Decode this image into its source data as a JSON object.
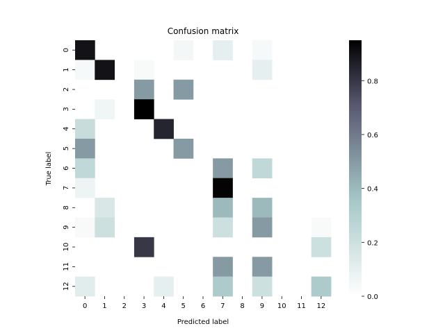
{
  "chart_data": {
    "type": "heatmap",
    "title": "Confusion matrix",
    "xlabel": "Predicted label",
    "ylabel": "True label",
    "x_categories": [
      "0",
      "1",
      "2",
      "3",
      "4",
      "5",
      "6",
      "7",
      "8",
      "9",
      "10",
      "11",
      "12"
    ],
    "y_categories": [
      "0",
      "1",
      "2",
      "3",
      "4",
      "5",
      "6",
      "7",
      "8",
      "9",
      "10",
      "11",
      "12"
    ],
    "values": [
      [
        0.9,
        0,
        0,
        0,
        0,
        0.05,
        0,
        0.1,
        0,
        0.04,
        0,
        0,
        0
      ],
      [
        0.04,
        0.9,
        0,
        0.03,
        0,
        0,
        0,
        0,
        0,
        0.1,
        0,
        0,
        0
      ],
      [
        0,
        0,
        0,
        0.5,
        0,
        0.5,
        0,
        0,
        0,
        0,
        0,
        0,
        0
      ],
      [
        0,
        0.06,
        0,
        0.95,
        0,
        0,
        0,
        0,
        0,
        0,
        0,
        0,
        0
      ],
      [
        0.22,
        0,
        0,
        0,
        0.85,
        0,
        0,
        0,
        0,
        0,
        0,
        0,
        0
      ],
      [
        0.5,
        0,
        0,
        0,
        0,
        0.5,
        0,
        0,
        0,
        0,
        0,
        0,
        0
      ],
      [
        0.25,
        0,
        0,
        0,
        0,
        0,
        0,
        0.5,
        0,
        0.25,
        0,
        0,
        0
      ],
      [
        0.07,
        0,
        0,
        0,
        0,
        0,
        0,
        0.94,
        0,
        0,
        0,
        0,
        0
      ],
      [
        0,
        0.15,
        0,
        0,
        0,
        0,
        0,
        0.4,
        0,
        0.4,
        0,
        0,
        0
      ],
      [
        0.03,
        0.2,
        0,
        0,
        0,
        0,
        0,
        0.2,
        0,
        0.5,
        0,
        0,
        0.03
      ],
      [
        0,
        0,
        0,
        0.8,
        0,
        0,
        0,
        0,
        0,
        0,
        0,
        0,
        0.2
      ],
      [
        0,
        0,
        0,
        0,
        0,
        0,
        0,
        0.5,
        0,
        0.5,
        0,
        0,
        0
      ],
      [
        0.12,
        0,
        0,
        0,
        0.1,
        0,
        0,
        0.33,
        0,
        0.2,
        0,
        0,
        0.33
      ]
    ],
    "colorbar": {
      "min": 0.0,
      "max": 0.95,
      "ticks": [
        0.0,
        0.2,
        0.4,
        0.6,
        0.8
      ],
      "tick_labels": [
        "0.0",
        "0.2",
        "0.4",
        "0.6",
        "0.8"
      ]
    },
    "colormap": "bone_r",
    "grid": false,
    "legend": "colorbar-right"
  }
}
